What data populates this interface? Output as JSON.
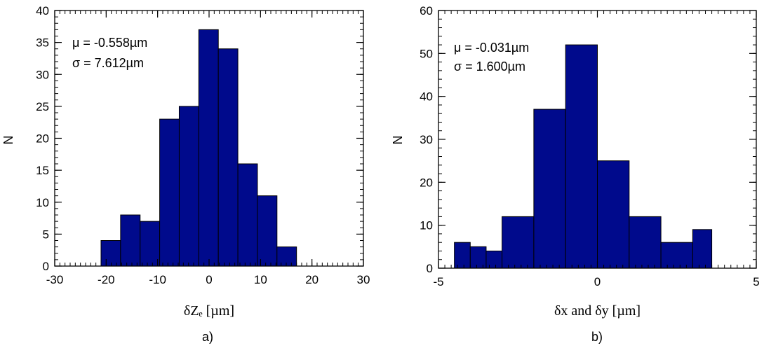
{
  "chart_data": [
    {
      "type": "bar",
      "panel_label": "a)",
      "xlabel": "δZₑ [µm]",
      "ylabel": "N",
      "xlim": [
        -30,
        30
      ],
      "ylim": [
        0,
        40
      ],
      "xticks": [
        -30,
        -20,
        -10,
        0,
        10,
        20,
        30
      ],
      "yticks": [
        0,
        5,
        10,
        15,
        20,
        25,
        30,
        35,
        40
      ],
      "bin_edges": [
        -21,
        -17.2,
        -13.4,
        -9.6,
        -5.8,
        -2.0,
        1.8,
        5.6,
        9.4,
        13.2,
        17.0
      ],
      "values": [
        4,
        8,
        7,
        23,
        25,
        37,
        34,
        16,
        11,
        3
      ],
      "annotation": [
        "μ = -0.558µm",
        "σ = 7.612µm"
      ],
      "bar_color": "#000a8c"
    },
    {
      "type": "bar",
      "panel_label": "b)",
      "xlabel": "δx and δy [µm]",
      "ylabel": "N",
      "xlim": [
        -5,
        5
      ],
      "ylim": [
        0,
        60
      ],
      "xticks": [
        -5,
        0,
        5
      ],
      "yticks": [
        0,
        10,
        20,
        30,
        40,
        50,
        60
      ],
      "bin_edges": [
        -4.5,
        -4.0,
        -3.5,
        -3.0,
        -2.0,
        -1.0,
        0.0,
        1.0,
        2.0,
        3.0,
        3.6
      ],
      "values": [
        6,
        5,
        4,
        12,
        37,
        52,
        25,
        12,
        6,
        9
      ],
      "annotation": [
        "μ = -0.031µm",
        "σ = 1.600µm"
      ],
      "bar_color": "#000a8c"
    }
  ]
}
